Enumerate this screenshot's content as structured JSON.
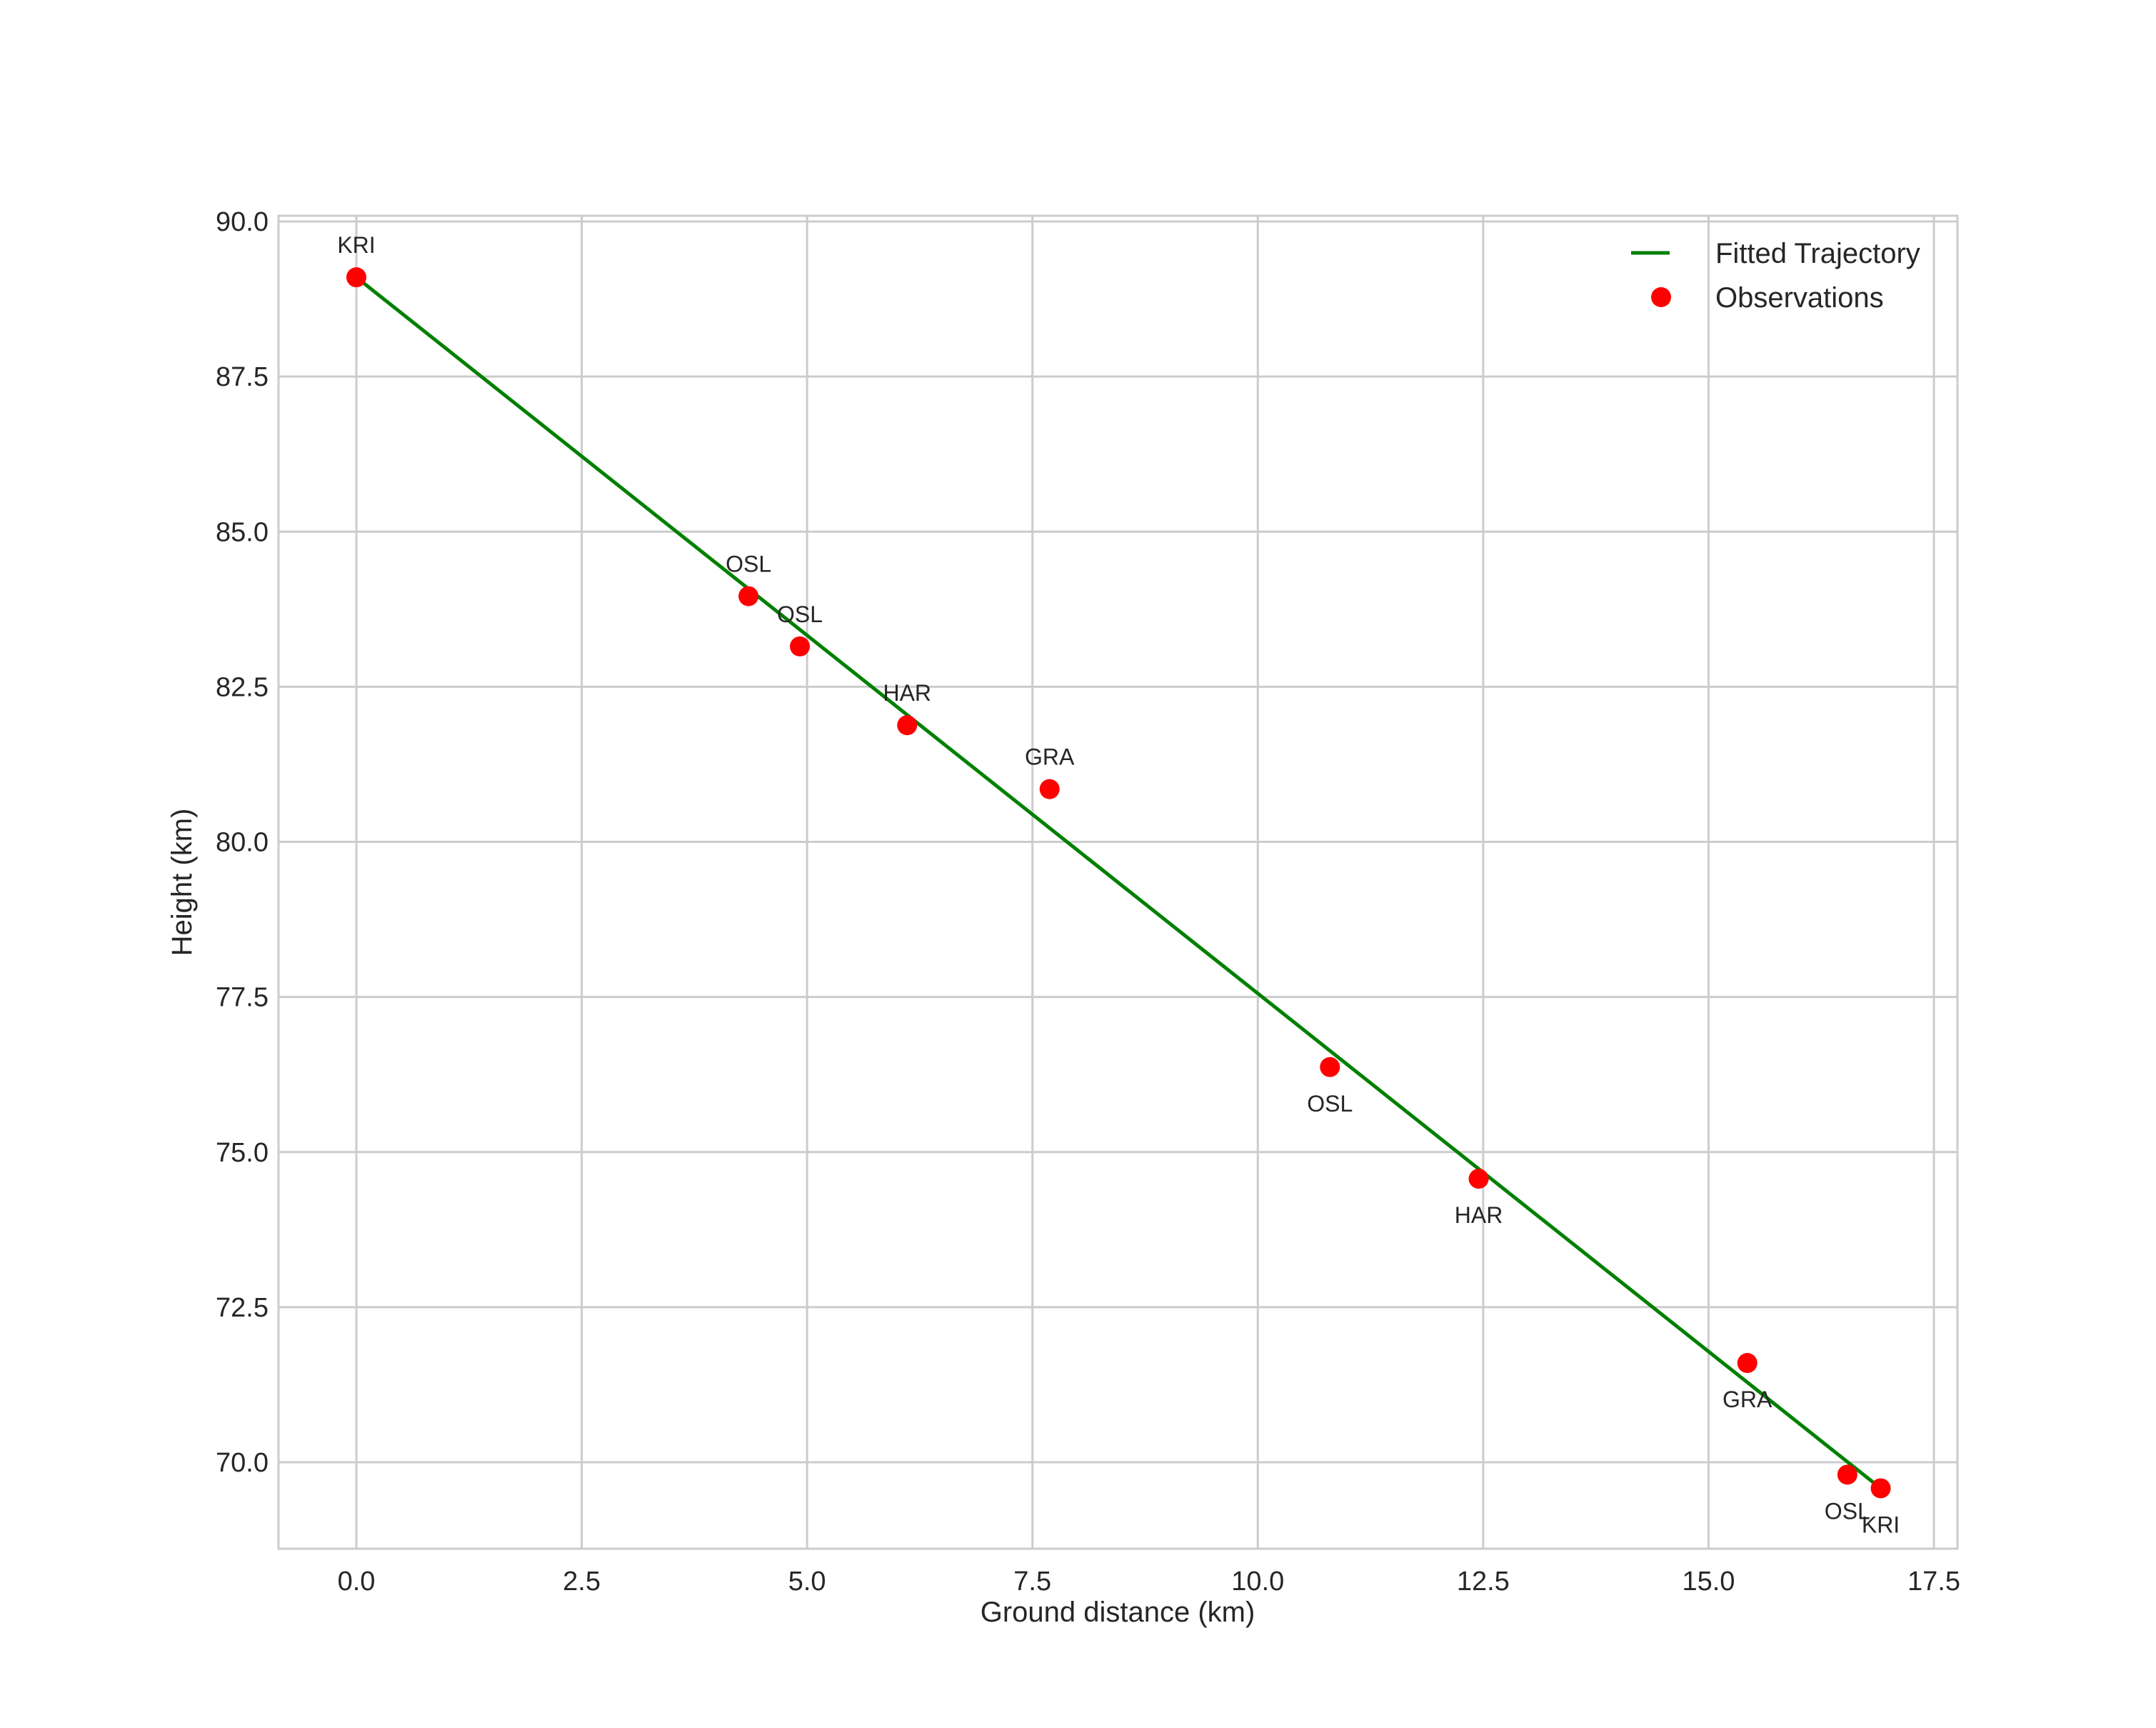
{
  "chart_data": {
    "type": "scatter",
    "title": "",
    "xlabel": "Ground distance (km)",
    "ylabel": "Height (km)",
    "xlim": [
      -0.85,
      17.75
    ],
    "ylim": [
      68.6,
      90.2
    ],
    "xticks": [
      0.0,
      2.5,
      5.0,
      7.5,
      10.0,
      12.5,
      15.0,
      17.5
    ],
    "xtick_labels": [
      "0.0",
      "2.5",
      "5.0",
      "7.5",
      "10.0",
      "12.5",
      "15.0",
      "17.5"
    ],
    "yticks": [
      70.0,
      72.5,
      75.0,
      77.5,
      80.0,
      82.5,
      85.0,
      87.5,
      90.0
    ],
    "ytick_labels": [
      "70.0",
      "72.5",
      "75.0",
      "77.5",
      "80.0",
      "82.5",
      "85.0",
      "87.5",
      "90.0"
    ],
    "grid": true,
    "legend_position": "upper right",
    "series": [
      {
        "name": "Fitted Trajectory",
        "type": "line",
        "color": "#008000",
        "x": [
          0.0,
          16.91
        ],
        "y": [
          89.1,
          69.58
        ]
      },
      {
        "name": "Observations",
        "type": "scatter",
        "color": "#ff0000",
        "points": [
          {
            "x": 0.0,
            "y": 89.1,
            "label": "KRI",
            "label_pos": "above"
          },
          {
            "x": 4.35,
            "y": 83.96,
            "label": "OSL",
            "label_pos": "above"
          },
          {
            "x": 4.92,
            "y": 83.15,
            "label": "OSL",
            "label_pos": "above"
          },
          {
            "x": 6.11,
            "y": 81.88,
            "label": "HAR",
            "label_pos": "above"
          },
          {
            "x": 7.69,
            "y": 80.85,
            "label": "GRA",
            "label_pos": "above"
          },
          {
            "x": 10.8,
            "y": 76.37,
            "label": "OSL",
            "label_pos": "below"
          },
          {
            "x": 12.45,
            "y": 74.57,
            "label": "HAR",
            "label_pos": "below"
          },
          {
            "x": 15.43,
            "y": 71.6,
            "label": "GRA",
            "label_pos": "below"
          },
          {
            "x": 16.54,
            "y": 69.8,
            "label": "OSL",
            "label_pos": "below"
          },
          {
            "x": 16.91,
            "y": 69.58,
            "label": "KRI",
            "label_pos": "below"
          }
        ]
      }
    ],
    "legend": [
      {
        "label": "Fitted Trajectory",
        "marker": "line",
        "color": "#008000"
      },
      {
        "label": "Observations",
        "marker": "circle",
        "color": "#ff0000"
      }
    ]
  },
  "style": {
    "grid_color": "#cccccc",
    "text_color": "#262626",
    "background": "#ffffff"
  }
}
